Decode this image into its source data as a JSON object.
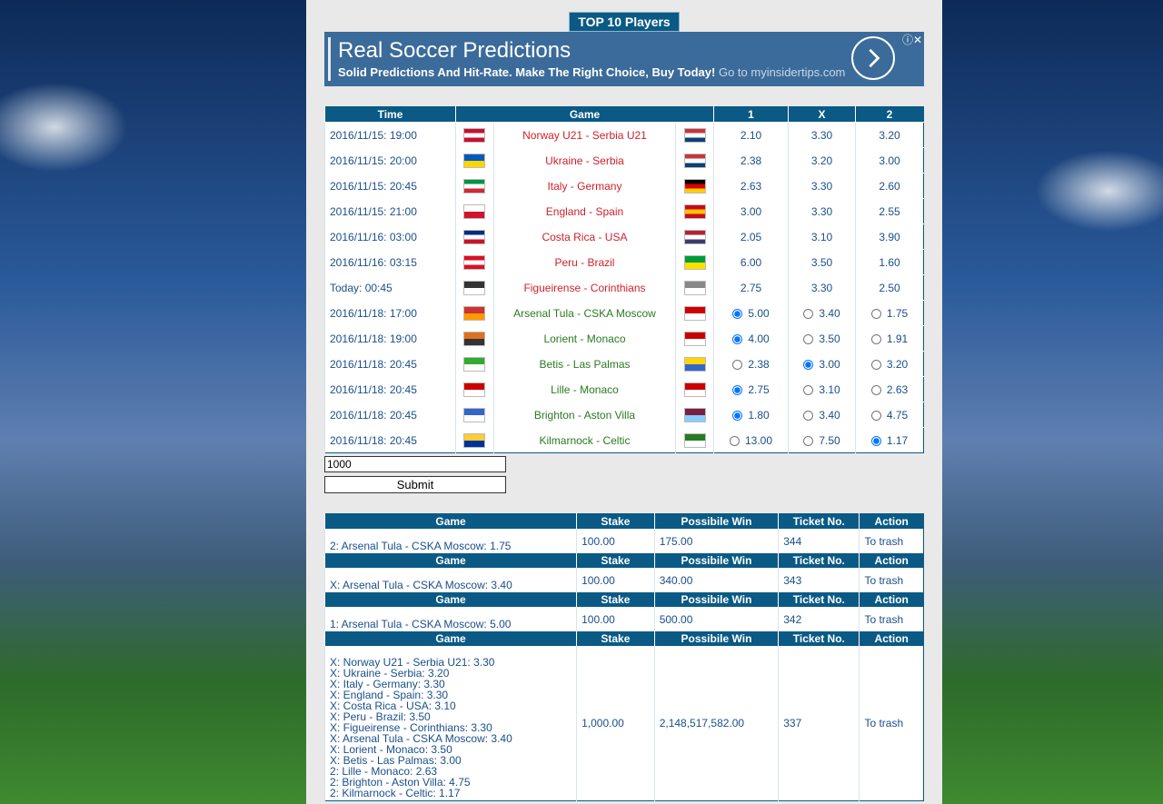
{
  "top_button": "TOP 10 Players",
  "ad": {
    "title": "Real Soccer Predictions",
    "text": "Solid Predictions And Hit-Rate. Make The Right Choice, Buy Today!",
    "link": "Go to myinsidertips.com"
  },
  "matches": {
    "headers": [
      "Time",
      "Game",
      "1",
      "X",
      "2"
    ],
    "rows": [
      {
        "time": "2016/11/15: 19:00",
        "game": "Norway U21 - Serbia U21",
        "odds": [
          "2.10",
          "3.30",
          "3.20"
        ],
        "radio": false,
        "selected": null
      },
      {
        "time": "2016/11/15: 20:00",
        "game": "Ukraine - Serbia",
        "odds": [
          "2.38",
          "3.20",
          "3.00"
        ],
        "radio": false,
        "selected": null
      },
      {
        "time": "2016/11/15: 20:45",
        "game": "Italy - Germany",
        "odds": [
          "2.63",
          "3.30",
          "2.60"
        ],
        "radio": false,
        "selected": null
      },
      {
        "time": "2016/11/15: 21:00",
        "game": "England - Spain",
        "odds": [
          "3.00",
          "3.30",
          "2.55"
        ],
        "radio": false,
        "selected": null
      },
      {
        "time": "2016/11/16: 03:00",
        "game": "Costa Rica - USA",
        "odds": [
          "2.05",
          "3.10",
          "3.90"
        ],
        "radio": false,
        "selected": null
      },
      {
        "time": "2016/11/16: 03:15",
        "game": "Peru - Brazil",
        "odds": [
          "6.00",
          "3.50",
          "1.60"
        ],
        "radio": false,
        "selected": null
      },
      {
        "time": "Today: 00:45",
        "game": "Figueirense - Corinthians",
        "odds": [
          "2.75",
          "3.30",
          "2.50"
        ],
        "radio": false,
        "selected": null
      },
      {
        "time": "2016/11/18: 17:00",
        "game": "Arsenal Tula - CSKA Moscow",
        "odds": [
          "5.00",
          "3.40",
          "1.75"
        ],
        "radio": true,
        "selected": 0
      },
      {
        "time": "2016/11/18: 19:00",
        "game": "Lorient - Monaco",
        "odds": [
          "4.00",
          "3.50",
          "1.91"
        ],
        "radio": true,
        "selected": 0
      },
      {
        "time": "2016/11/18: 20:45",
        "game": "Betis - Las Palmas",
        "odds": [
          "2.38",
          "3.00",
          "3.20"
        ],
        "radio": true,
        "selected": 1
      },
      {
        "time": "2016/11/18: 20:45",
        "game": "Lille - Monaco",
        "odds": [
          "2.75",
          "3.10",
          "2.63"
        ],
        "radio": true,
        "selected": 0
      },
      {
        "time": "2016/11/18: 20:45",
        "game": "Brighton - Aston Villa",
        "odds": [
          "1.80",
          "3.40",
          "4.75"
        ],
        "radio": true,
        "selected": 0
      },
      {
        "time": "2016/11/18: 20:45",
        "game": "Kilmarnock - Celtic",
        "odds": [
          "13.00",
          "7.50",
          "1.17"
        ],
        "radio": true,
        "selected": 2
      }
    ]
  },
  "stake_input": "1000",
  "submit": "Submit",
  "tickets": {
    "headers": [
      "Game",
      "Stake",
      "Possibile Win",
      "Ticket No.",
      "Action"
    ],
    "rows": [
      {
        "games": [
          "2: Arsenal Tula - CSKA Moscow: 1.75"
        ],
        "stake": "100.00",
        "win": "175.00",
        "ticket": "344",
        "action": "To trash"
      },
      {
        "games": [
          "X: Arsenal Tula - CSKA Moscow: 3.40"
        ],
        "stake": "100.00",
        "win": "340.00",
        "ticket": "343",
        "action": "To trash"
      },
      {
        "games": [
          "1: Arsenal Tula - CSKA Moscow: 5.00"
        ],
        "stake": "100.00",
        "win": "500.00",
        "ticket": "342",
        "action": "To trash"
      },
      {
        "games": [
          "X: Norway U21 - Serbia U21: 3.30",
          "X: Ukraine - Serbia: 3.20",
          "X: Italy - Germany: 3.30",
          "X: England - Spain: 3.30",
          "X: Costa Rica - USA: 3.10",
          "X: Peru - Brazil: 3.50",
          "X: Figueirense - Corinthians: 3.30",
          "X: Arsenal Tula - CSKA Moscow: 3.40",
          "X: Lorient - Monaco: 3.50",
          "X: Betis - Las Palmas: 3.00",
          "2: Lille - Monaco: 2.63",
          "2: Brighton - Aston Villa: 4.75",
          "2: Kilmarnock - Celtic: 1.17"
        ],
        "stake": "1,000.00",
        "win": "2,148,517,582.00",
        "ticket": "337",
        "action": "To trash"
      }
    ]
  }
}
